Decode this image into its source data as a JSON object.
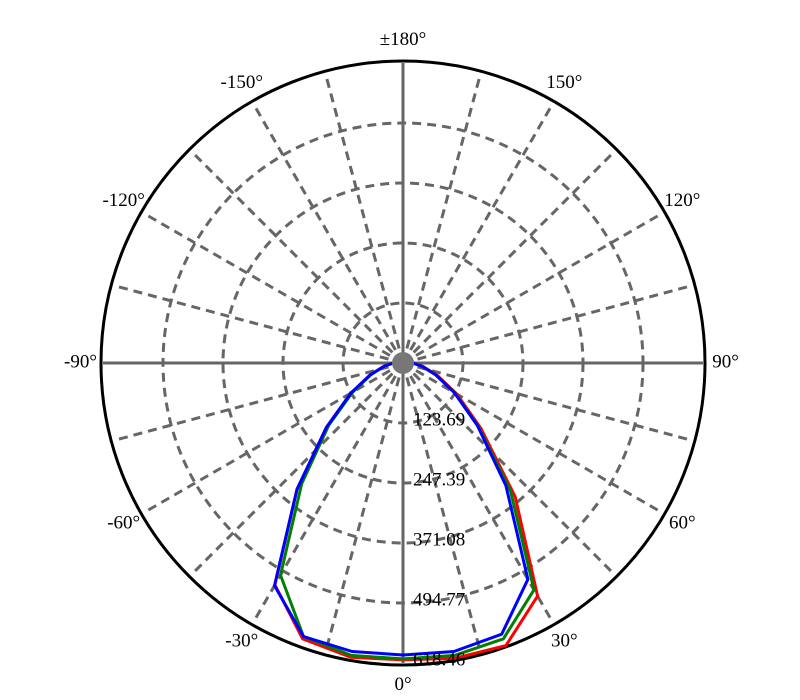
{
  "chart_data": {
    "type": "polar-line",
    "theta": [
      -90,
      -80,
      -70,
      -60,
      -50,
      -40,
      -30,
      -20,
      -10,
      0,
      10,
      20,
      30,
      40,
      50,
      60,
      70,
      80,
      90
    ],
    "series": [
      {
        "color": "#ff0000",
        "values": [
          20,
          41,
          72,
          124,
          206,
          340,
          528,
          605,
          616,
          612,
          618,
          620,
          555,
          360,
          210,
          128,
          75,
          42,
          22
        ]
      },
      {
        "color": "#008000",
        "values": [
          20,
          40,
          70,
          120,
          200,
          325,
          505,
          600,
          612,
          610,
          612,
          605,
          540,
          345,
          202,
          124,
          72,
          40,
          20
        ]
      },
      {
        "color": "#0000ff",
        "values": [
          20,
          40,
          72,
          124,
          206,
          340,
          530,
          600,
          604,
          602,
          604,
          595,
          515,
          330,
          200,
          122,
          72,
          40,
          20
        ]
      }
    ],
    "rlim": [
      0,
      618.46
    ],
    "rticks": [
      123.69,
      247.39,
      371.08,
      494.77,
      618.46
    ],
    "thetaticks": [
      {
        "value": 0,
        "label": "0°"
      },
      {
        "value": 30,
        "label": "30°"
      },
      {
        "value": 60,
        "label": "60°"
      },
      {
        "value": 90,
        "label": "90°"
      },
      {
        "value": 120,
        "label": "120°"
      },
      {
        "value": 150,
        "label": "150°"
      },
      {
        "value": 180,
        "label": "±180°"
      },
      {
        "value": -150,
        "label": "-150°"
      },
      {
        "value": -120,
        "label": "-120°"
      },
      {
        "value": -90,
        "label": "-90°"
      },
      {
        "value": -60,
        "label": "-60°"
      },
      {
        "value": -30,
        "label": "-30°"
      }
    ],
    "thetaminor": [
      15,
      45,
      75,
      105,
      135,
      165,
      -165,
      -135,
      -105,
      -75,
      -45,
      -15
    ],
    "grid": true
  }
}
